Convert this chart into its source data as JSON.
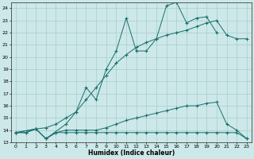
{
  "xlabel": "Humidex (Indice chaleur)",
  "bg_color": "#cce8e8",
  "grid_color": "#aacccc",
  "line_color": "#1a6e6e",
  "xlim": [
    -0.5,
    23.5
  ],
  "ylim": [
    13,
    24.5
  ],
  "xticks": [
    0,
    1,
    2,
    3,
    4,
    5,
    6,
    7,
    8,
    9,
    10,
    11,
    12,
    13,
    14,
    15,
    16,
    17,
    18,
    19,
    20,
    21,
    22,
    23
  ],
  "yticks": [
    13,
    14,
    15,
    16,
    17,
    18,
    19,
    20,
    21,
    22,
    23,
    24
  ],
  "series": [
    {
      "x": [
        0,
        1,
        2,
        3,
        4,
        5,
        6,
        7,
        8,
        9,
        10,
        11,
        12,
        13,
        14,
        15,
        16,
        17,
        18,
        19,
        20,
        21,
        22,
        23
      ],
      "y": [
        13.8,
        13.8,
        14.1,
        13.3,
        13.8,
        13.8,
        13.8,
        13.8,
        13.8,
        13.8,
        13.8,
        13.8,
        13.8,
        13.8,
        13.8,
        13.8,
        13.8,
        13.8,
        13.8,
        13.8,
        13.8,
        13.8,
        13.8,
        13.3
      ]
    },
    {
      "x": [
        0,
        1,
        2,
        3,
        4,
        5,
        6,
        7,
        8,
        9,
        10,
        11,
        12,
        13,
        14,
        15,
        16,
        17,
        18,
        19,
        20,
        21,
        22,
        23
      ],
      "y": [
        13.8,
        13.8,
        14.1,
        13.3,
        13.8,
        14.0,
        14.0,
        14.0,
        14.0,
        14.2,
        14.5,
        14.8,
        15.0,
        15.2,
        15.4,
        15.6,
        15.8,
        16.0,
        16.0,
        16.2,
        16.3,
        14.5,
        14.0,
        13.3
      ]
    },
    {
      "x": [
        0,
        2,
        3,
        4,
        5,
        6,
        7,
        8,
        9,
        10,
        11,
        12,
        13,
        14,
        15,
        16,
        17,
        18,
        19,
        20,
        21,
        22,
        23
      ],
      "y": [
        13.8,
        14.1,
        14.2,
        14.5,
        15.0,
        15.5,
        16.5,
        17.5,
        18.5,
        19.5,
        20.2,
        20.8,
        21.2,
        21.5,
        21.8,
        22.0,
        22.2,
        22.5,
        22.8,
        23.0,
        21.8,
        21.5,
        21.5
      ]
    },
    {
      "x": [
        0,
        2,
        3,
        5,
        6,
        7,
        8,
        9,
        10,
        11,
        12,
        13,
        14,
        15,
        16,
        17,
        18,
        19,
        20
      ],
      "y": [
        13.8,
        14.1,
        13.3,
        14.5,
        15.5,
        17.5,
        16.5,
        19.0,
        20.5,
        23.2,
        20.5,
        20.5,
        21.5,
        24.2,
        24.5,
        22.8,
        23.2,
        23.3,
        22.0
      ]
    }
  ]
}
